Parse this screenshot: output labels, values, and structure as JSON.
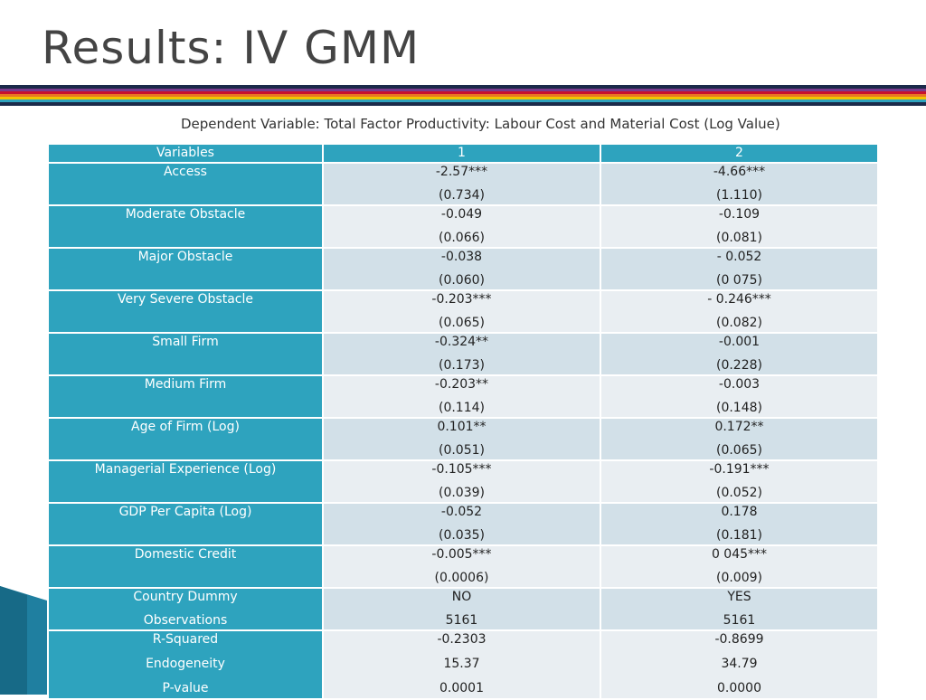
{
  "slide": {
    "title": "Results: IV GMM",
    "subtitle": "Dependent Variable: Total Factor Productivity: Labour Cost and Material Cost (Log Value)",
    "accent_color": "#2EA3BE",
    "stripe_colors": [
      "#1B2A4A",
      "#7A3A8C",
      "#C8102E",
      "#E87722",
      "#F2C500",
      "#2EA3BE",
      "#1B2A4A"
    ]
  },
  "table": {
    "headers": [
      "Variables",
      "1",
      "2"
    ],
    "rows": [
      {
        "label": "Access",
        "col1": [
          "-2.57***",
          "(0.734)"
        ],
        "col2": [
          "-4.66***",
          "(1.110)"
        ]
      },
      {
        "label": "Moderate Obstacle",
        "col1": [
          "-0.049",
          "(0.066)"
        ],
        "col2": [
          "-0.109",
          "(0.081)"
        ]
      },
      {
        "label": "Major Obstacle",
        "col1": [
          "-0.038",
          "(0.060)"
        ],
        "col2": [
          "- 0.052",
          "(0 075)"
        ]
      },
      {
        "label": "Very Severe Obstacle",
        "col1": [
          "-0.203***",
          "(0.065)"
        ],
        "col2": [
          "- 0.246***",
          "(0.082)"
        ]
      },
      {
        "label": "Small Firm",
        "col1": [
          "-0.324**",
          "(0.173)"
        ],
        "col2": [
          "-0.001",
          "(0.228)"
        ]
      },
      {
        "label": "Medium Firm",
        "col1": [
          "-0.203**",
          "(0.114)"
        ],
        "col2": [
          "-0.003",
          "(0.148)"
        ]
      },
      {
        "label": "Age of Firm (Log)",
        "col1": [
          "0.101**",
          "(0.051)"
        ],
        "col2": [
          "0.172**",
          "(0.065)"
        ]
      },
      {
        "label": "Managerial Experience (Log)",
        "col1": [
          "-0.105***",
          "(0.039)"
        ],
        "col2": [
          "-0.191***",
          "(0.052)"
        ]
      },
      {
        "label": "GDP Per Capita (Log)",
        "col1": [
          "-0.052",
          "(0.035)"
        ],
        "col2": [
          "0.178",
          "(0.181)"
        ]
      },
      {
        "label": "Domestic Credit",
        "col1": [
          "-0.005***",
          "(0.0006)"
        ],
        "col2": [
          "0 045***",
          "(0.009)"
        ]
      },
      {
        "label": "Country Dummy",
        "label2": "Observations",
        "col1": [
          "NO",
          "5161"
        ],
        "col2": [
          "YES",
          "5161"
        ]
      },
      {
        "labels": [
          "R-Squared",
          "Endogeneity",
          "P-value"
        ],
        "col1": [
          "-0.2303",
          "15.37",
          "0.0001"
        ],
        "col2": [
          "-0.8699",
          "34.79",
          "0.0000"
        ]
      }
    ]
  }
}
